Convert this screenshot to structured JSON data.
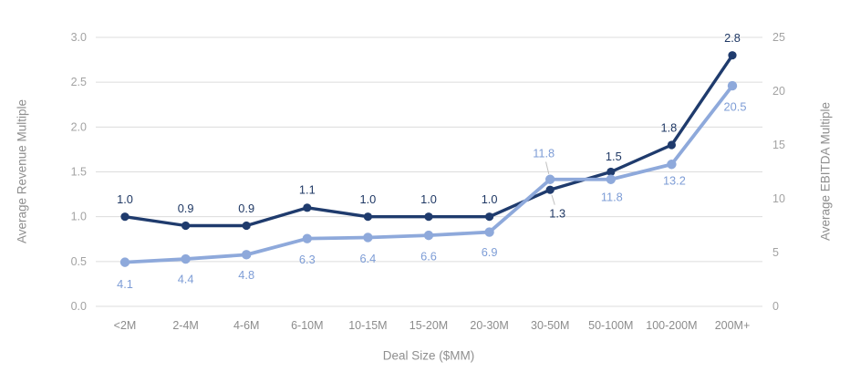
{
  "chart_data": {
    "type": "line",
    "title": "",
    "legend": "none",
    "grid": true,
    "categories": [
      "<2M",
      "2-4M",
      "4-6M",
      "6-10M",
      "10-15M",
      "15-20M",
      "20-30M",
      "30-50M",
      "50-100M",
      "100-200M",
      "200M+"
    ],
    "series": [
      {
        "name": "Average Revenue Multiple",
        "axis": "left",
        "color": "#1f3b6d",
        "label_color": "#1f3864",
        "values": [
          1.0,
          0.9,
          0.9,
          1.1,
          1.0,
          1.0,
          1.0,
          1.3,
          1.5,
          1.8,
          2.8
        ],
        "data_labels": [
          "1.0",
          "0.9",
          "0.9",
          "1.1",
          "1.0",
          "1.0",
          "1.0",
          "1.3",
          "1.5",
          "1.8",
          "2.8"
        ]
      },
      {
        "name": "Average EBITDA Multiple",
        "axis": "right",
        "color": "#8ea9db",
        "label_color": "#7e9dd6",
        "values": [
          4.1,
          4.4,
          4.8,
          6.3,
          6.4,
          6.6,
          6.9,
          11.8,
          11.8,
          13.2,
          20.5
        ],
        "data_labels": [
          "4.1",
          "4.4",
          "4.8",
          "6.3",
          "6.4",
          "6.6",
          "6.9",
          "11.8",
          "11.8",
          "13.2",
          "20.5"
        ]
      }
    ],
    "axes": {
      "left": {
        "title": "Average Revenue Multiple",
        "min": 0,
        "max": 3,
        "tick_labels": [
          "3.0",
          "2.5",
          "2.0",
          "1.5",
          "1.0",
          "0.5",
          "0.0"
        ]
      },
      "right": {
        "title": "Average EBITDA Multiple",
        "min": 0,
        "max": 25,
        "tick_labels": [
          "25",
          "20",
          "15",
          "10",
          "5",
          "0"
        ]
      },
      "x": {
        "title": "Deal Size ($MM)"
      }
    },
    "colors": {
      "grid": "#dcdcdc",
      "tick_text": "#a3a3a3",
      "x_tick_text": "#8c8c8c",
      "axis_title_text": "#8f8f8f",
      "leader": "#bfbfbf",
      "background": "#ffffff"
    },
    "layout": {
      "label_offsets": [
        [
          [
            0,
            -19
          ],
          [
            0,
            -19
          ],
          [
            0,
            -19
          ],
          [
            0,
            -20
          ],
          [
            0,
            -19
          ],
          [
            0,
            -19
          ],
          [
            0,
            -19
          ],
          [
            8,
            26,
            true
          ],
          [
            3,
            -17
          ],
          [
            -3,
            -19
          ],
          [
            0,
            -19
          ]
        ],
        [
          [
            0,
            24
          ],
          [
            0,
            22
          ],
          [
            0,
            22
          ],
          [
            0,
            23
          ],
          [
            0,
            23
          ],
          [
            0,
            23
          ],
          [
            0,
            22
          ],
          [
            -7,
            -29,
            true
          ],
          [
            1,
            19
          ],
          [
            3,
            18
          ],
          [
            3,
            23
          ]
        ]
      ],
      "line_widths": [
        3.4,
        3.8
      ],
      "marker_radii": [
        4.6,
        5.2
      ]
    }
  }
}
